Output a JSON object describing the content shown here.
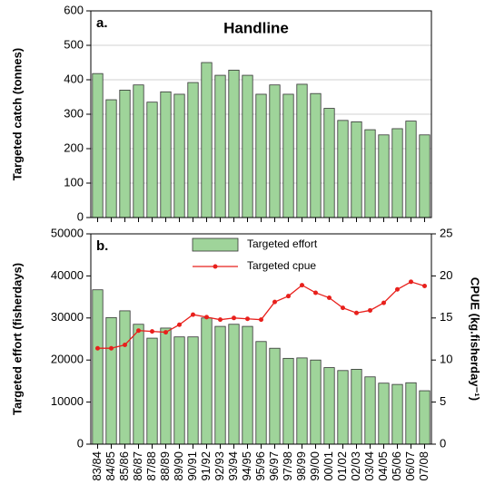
{
  "chart_data": [
    {
      "type": "bar",
      "panel": "a.",
      "title": "Handline",
      "y_label": "Targeted catch (tonnes)",
      "values": [
        418,
        342,
        370,
        385,
        335,
        365,
        358,
        392,
        450,
        413,
        428,
        413,
        358,
        385,
        358,
        387,
        360,
        317,
        282,
        278,
        255,
        240,
        258,
        280,
        240
      ],
      "color": "#9fd49a",
      "ylim": [
        0,
        600
      ],
      "yticks": [
        0,
        100,
        200,
        300,
        400,
        500,
        600
      ],
      "grid": true
    },
    {
      "type": "bar_line",
      "panel": "b.",
      "y_label": "Targeted effort (fisherdays)",
      "y2_label": "CPUE (kg.fisherday⁻¹)",
      "categories": [
        "83/84",
        "84/85",
        "85/86",
        "86/87",
        "87/88",
        "88/89",
        "89/90",
        "90/91",
        "91/92",
        "92/93",
        "93/94",
        "94/95",
        "95/96",
        "96/97",
        "97/98",
        "98/99",
        "99/00",
        "00/01",
        "01/02",
        "02/03",
        "03/04",
        "04/05",
        "05/06",
        "06/07",
        "07/08"
      ],
      "series": [
        {
          "name": "Targeted effort",
          "color": "#9fd49a",
          "values": [
            36700,
            30100,
            31700,
            28500,
            25200,
            27600,
            25500,
            25500,
            30000,
            28000,
            28500,
            28000,
            24400,
            22800,
            20400,
            20500,
            20000,
            18200,
            17500,
            17800,
            16000,
            14500,
            14200,
            14600,
            12700
          ]
        },
        {
          "name": "Targeted cpue",
          "color": "#e8201c",
          "axis": "y2",
          "values": [
            11.4,
            11.4,
            11.8,
            13.5,
            13.4,
            13.3,
            14.2,
            15.4,
            15.1,
            14.8,
            15.0,
            14.9,
            14.8,
            16.9,
            17.6,
            18.9,
            18.0,
            17.4,
            16.2,
            15.6,
            15.9,
            16.8,
            18.4,
            19.3,
            18.8
          ]
        }
      ],
      "ylim": [
        0,
        50000
      ],
      "yticks": [
        0,
        10000,
        20000,
        30000,
        40000,
        50000
      ],
      "y2lim": [
        0,
        25
      ],
      "y2ticks": [
        0,
        5,
        10,
        15,
        20,
        25
      ],
      "grid": false
    }
  ]
}
